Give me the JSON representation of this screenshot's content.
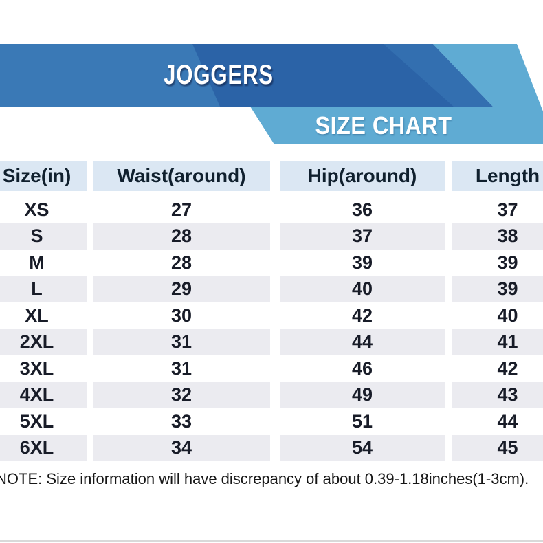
{
  "banner": {
    "product_title": "JOGGERS",
    "chart_label": "SIZE CHART",
    "colors": {
      "band": "#3a79b6",
      "dark": "#2b63a7",
      "stripe": "#336fb0",
      "light": "#5fabd3"
    }
  },
  "table": {
    "headers": [
      "Size(in)",
      "Waist(around)",
      "Hip(around)",
      "Length"
    ],
    "rows": [
      {
        "size": "XS",
        "waist": "27",
        "hip": "36",
        "length": "37"
      },
      {
        "size": "S",
        "waist": "28",
        "hip": "37",
        "length": "38"
      },
      {
        "size": "M",
        "waist": "28",
        "hip": "39",
        "length": "39"
      },
      {
        "size": "L",
        "waist": "29",
        "hip": "40",
        "length": "39"
      },
      {
        "size": "XL",
        "waist": "30",
        "hip": "42",
        "length": "40"
      },
      {
        "size": "2XL",
        "waist": "31",
        "hip": "44",
        "length": "41"
      },
      {
        "size": "3XL",
        "waist": "31",
        "hip": "46",
        "length": "42"
      },
      {
        "size": "4XL",
        "waist": "32",
        "hip": "49",
        "length": "43"
      },
      {
        "size": "5XL",
        "waist": "33",
        "hip": "51",
        "length": "44"
      },
      {
        "size": "6XL",
        "waist": "34",
        "hip": "54",
        "length": "45"
      }
    ],
    "header_bg": "#dbe7f3",
    "stripe_bg": "#ebebf0"
  },
  "note": "NOTE: Size information will have discrepancy of about 0.39-1.18inches(1-3cm).",
  "chart_data": {
    "type": "table",
    "title": "JOGGERS SIZE CHART",
    "columns": [
      "Size(in)",
      "Waist(around)",
      "Hip(around)",
      "Length"
    ],
    "rows": [
      [
        "XS",
        "27",
        "36",
        "37"
      ],
      [
        "S",
        "28",
        "37",
        "38"
      ],
      [
        "M",
        "28",
        "39",
        "39"
      ],
      [
        "L",
        "29",
        "40",
        "39"
      ],
      [
        "XL",
        "30",
        "42",
        "40"
      ],
      [
        "2XL",
        "31",
        "44",
        "41"
      ],
      [
        "3XL",
        "31",
        "46",
        "42"
      ],
      [
        "4XL",
        "32",
        "49",
        "43"
      ],
      [
        "5XL",
        "33",
        "51",
        "44"
      ],
      [
        "6XL",
        "34",
        "54",
        "45"
      ]
    ]
  }
}
